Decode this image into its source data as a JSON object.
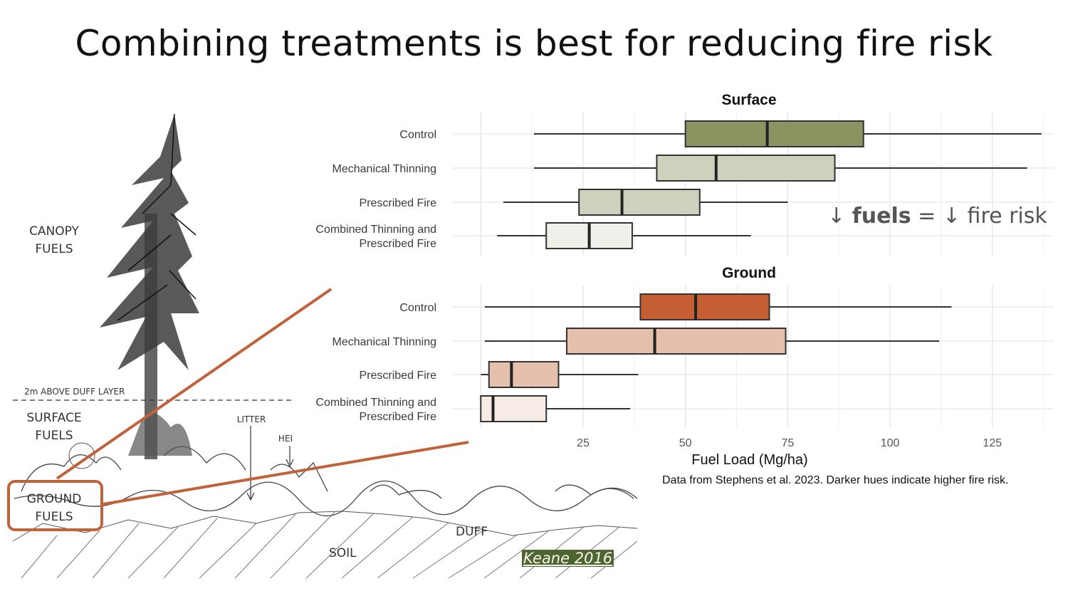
{
  "slide": {
    "title": "Combining treatments is best for reducing fire risk"
  },
  "illustration": {
    "labels": {
      "canopy_line1": "CANOPY",
      "canopy_line2": "FUELS",
      "duff_layer": "2m ABOVE DUFF LAYER",
      "surface_line1": "SURFACE",
      "surface_line2": "FUELS",
      "litter": "LITTER",
      "hei": "HEI",
      "ground_line1": "GROUND",
      "ground_line2": "FUELS",
      "duff": "DUFF",
      "soil": "SOIL"
    },
    "citation": "Keane 2016",
    "accent_color": "#c0623a"
  },
  "annotation": {
    "arrow1": "↓",
    "fuels": "fuels",
    "equals": "=",
    "arrow2": "↓",
    "rest": "fire risk"
  },
  "source_note": "Data from Stephens et al. 2023. Darker hues indicate higher fire risk.",
  "chart_data": {
    "type": "boxplot",
    "xlabel": "Fuel Load (Mg/ha)",
    "xlim": [
      -7,
      140
    ],
    "xticks": [
      25,
      50,
      75,
      100,
      125
    ],
    "grid": true,
    "categories": [
      "Control",
      "Mechanical Thinning",
      "Prescribed Fire",
      "Combined Thinning and Prescribed Fire"
    ],
    "panels": [
      {
        "title": "Surface",
        "series": [
          {
            "category": "Control",
            "whisker_low": 13,
            "q1": 50,
            "median": 70,
            "q3": 93.5,
            "whisker_high": 137,
            "color": "#8a9461"
          },
          {
            "category": "Mechanical Thinning",
            "whisker_low": 13,
            "q1": 43,
            "median": 57.5,
            "q3": 86.5,
            "whisker_high": 133.5,
            "color": "#cfd1bc"
          },
          {
            "category": "Prescribed Fire",
            "whisker_low": 5.5,
            "q1": 24,
            "median": 34.5,
            "q3": 53.5,
            "whisker_high": 75,
            "color": "#cfd1bc"
          },
          {
            "category": "Combined Thinning and Prescribed Fire",
            "whisker_low": 4,
            "q1": 16,
            "median": 26.5,
            "q3": 37,
            "whisker_high": 66,
            "color": "#eff0ea"
          }
        ]
      },
      {
        "title": "Ground",
        "series": [
          {
            "category": "Control",
            "whisker_low": 1,
            "q1": 39,
            "median": 52.5,
            "q3": 70.5,
            "whisker_high": 115,
            "color": "#c55f33"
          },
          {
            "category": "Mechanical Thinning",
            "whisker_low": 1,
            "q1": 21,
            "median": 42.5,
            "q3": 74.5,
            "whisker_high": 112,
            "color": "#e4c0ad"
          },
          {
            "category": "Prescribed Fire",
            "whisker_low": 0,
            "q1": 2,
            "median": 7.5,
            "q3": 19,
            "whisker_high": 38.5,
            "color": "#e4c0ad"
          },
          {
            "category": "Combined Thinning and Prescribed Fire",
            "whisker_low": 0,
            "q1": 0,
            "median": 3,
            "q3": 16,
            "whisker_high": 36.5,
            "color": "#f7ebe5"
          }
        ]
      }
    ]
  }
}
